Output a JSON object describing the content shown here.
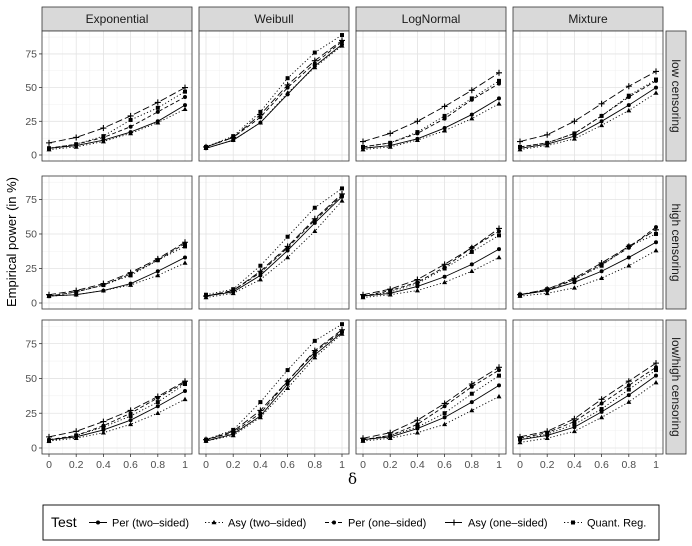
{
  "chart_data": {
    "type": "line",
    "facet_columns": [
      "Exponential",
      "Weibull",
      "LogNormal",
      "Mixture"
    ],
    "facet_rows": [
      "low censoring",
      "high censoring",
      "low/high censoring"
    ],
    "x": [
      0,
      0.2,
      0.4,
      0.6,
      0.8,
      1
    ],
    "x_tick_labels": [
      "0",
      "0.2",
      "0.4",
      "0.6",
      "0.8",
      "1"
    ],
    "y_tick_values": [
      0,
      25,
      50,
      75
    ],
    "y_tick_labels": [
      "0",
      "25",
      "50",
      "75"
    ],
    "ylim": [
      0,
      92
    ],
    "xlabel": "δ",
    "ylabel": "Empirical power (in %)",
    "legend": {
      "title": "Test",
      "position": "bottom",
      "entries": [
        "Per (two–sided)",
        "Asy (two–sided)",
        "Per (one–sided)",
        "Asy (one–sided)",
        "Quant. Reg."
      ]
    },
    "series_styles": [
      {
        "name": "Per (two–sided)",
        "marker": "circle",
        "dash": "solid"
      },
      {
        "name": "Asy (two–sided)",
        "marker": "triangle",
        "dash": "dotted"
      },
      {
        "name": "Per (one–sided)",
        "marker": "circle",
        "dash": "dashed"
      },
      {
        "name": "Asy (one–sided)",
        "marker": "plus",
        "dash": "longdash"
      },
      {
        "name": "Quant. Reg.",
        "marker": "square",
        "dash": "dotted"
      }
    ],
    "panels": [
      [
        {
          "row": "low censoring",
          "col": "Exponential",
          "series": [
            [
              5,
              7,
              11,
              17,
              25,
              37
            ],
            [
              4,
              6,
              10,
              16,
              24,
              34
            ],
            [
              5,
              8,
              13,
              21,
              32,
              43
            ],
            [
              9,
              13,
              20,
              29,
              39,
              50
            ],
            [
              5,
              8,
              14,
              26,
              35,
              47
            ]
          ]
        },
        {
          "row": "low censoring",
          "col": "Weibull",
          "series": [
            [
              5,
              11,
              24,
              45,
              66,
              82
            ],
            [
              5,
              11,
              24,
              46,
              65,
              81
            ],
            [
              6,
              13,
              28,
              50,
              68,
              84
            ],
            [
              6,
              13,
              30,
              52,
              70,
              85
            ],
            [
              6,
              14,
              32,
              57,
              76,
              89
            ]
          ]
        },
        {
          "row": "low censoring",
          "col": "LogNormal",
          "series": [
            [
              5,
              7,
              12,
              20,
              30,
              42
            ],
            [
              4,
              6,
              11,
              18,
              27,
              38
            ],
            [
              6,
              9,
              16,
              27,
              41,
              53
            ],
            [
              10,
              16,
              25,
              36,
              48,
              61
            ],
            [
              6,
              9,
              17,
              29,
              42,
              55
            ]
          ]
        },
        {
          "row": "low censoring",
          "col": "Mixture",
          "series": [
            [
              5,
              8,
              14,
              25,
              37,
              50
            ],
            [
              4,
              7,
              12,
              22,
              33,
              46
            ],
            [
              6,
              9,
              16,
              29,
              43,
              55
            ],
            [
              10,
              15,
              25,
              38,
              51,
              62
            ],
            [
              6,
              9,
              16,
              29,
              44,
              56
            ]
          ]
        }
      ],
      [
        {
          "row": "high censoring",
          "col": "Exponential",
          "series": [
            [
              5,
              6,
              9,
              14,
              23,
              33
            ],
            [
              5,
              6,
              9,
              13,
              20,
              29
            ],
            [
              5,
              8,
              13,
              21,
              31,
              43
            ],
            [
              6,
              9,
              14,
              22,
              32,
              44
            ],
            [
              5,
              8,
              13,
              20,
              31,
              41
            ]
          ]
        },
        {
          "row": "high censoring",
          "col": "Weibull",
          "series": [
            [
              5,
              8,
              20,
              38,
              58,
              77
            ],
            [
              4,
              7,
              17,
              33,
              52,
              74
            ],
            [
              5,
              9,
              22,
              40,
              60,
              78
            ],
            [
              5,
              9,
              23,
              41,
              61,
              79
            ],
            [
              6,
              10,
              27,
              48,
              69,
              83
            ]
          ]
        },
        {
          "row": "high censoring",
          "col": "LogNormal",
          "series": [
            [
              5,
              7,
              12,
              19,
              28,
              39
            ],
            [
              4,
              6,
              9,
              15,
              23,
              33
            ],
            [
              5,
              9,
              15,
              26,
              40,
              52
            ],
            [
              6,
              10,
              17,
              28,
              40,
              54
            ],
            [
              5,
              8,
              14,
              25,
              37,
              49
            ]
          ]
        },
        {
          "row": "high censoring",
          "col": "Mixture",
          "series": [
            [
              6,
              9,
              15,
              23,
              33,
              44
            ],
            [
              5,
              7,
              11,
              18,
              27,
              38
            ],
            [
              6,
              9,
              17,
              28,
              40,
              55
            ],
            [
              6,
              10,
              18,
              29,
              41,
              53
            ],
            [
              6,
              10,
              17,
              27,
              41,
              50
            ]
          ]
        }
      ],
      [
        {
          "row": "low/high censoring",
          "col": "Exponential",
          "series": [
            [
              6,
              8,
              13,
              20,
              30,
              41
            ],
            [
              5,
              7,
              11,
              17,
              25,
              35
            ],
            [
              6,
              9,
              16,
              25,
              36,
              47
            ],
            [
              8,
              12,
              19,
              27,
              37,
              48
            ],
            [
              5,
              9,
              15,
              23,
              33,
              46
            ]
          ]
        },
        {
          "row": "low/high censoring",
          "col": "Weibull",
          "series": [
            [
              5,
              10,
              23,
              46,
              67,
              83
            ],
            [
              5,
              9,
              22,
              43,
              65,
              82
            ],
            [
              6,
              11,
              25,
              48,
              69,
              84
            ],
            [
              6,
              12,
              27,
              48,
              70,
              85
            ],
            [
              6,
              13,
              33,
              56,
              77,
              89
            ]
          ]
        },
        {
          "row": "low/high censoring",
          "col": "LogNormal",
          "series": [
            [
              6,
              8,
              14,
              22,
              33,
              45
            ],
            [
              5,
              7,
              11,
              17,
              27,
              37
            ],
            [
              6,
              9,
              17,
              30,
              44,
              56
            ],
            [
              7,
              11,
              20,
              32,
              46,
              58
            ],
            [
              6,
              9,
              15,
              25,
              39,
              52
            ]
          ]
        },
        {
          "row": "low/high censoring",
          "col": "Mixture",
          "series": [
            [
              6,
              9,
              15,
              26,
              38,
              52
            ],
            [
              4,
              7,
              12,
              22,
              33,
              47
            ],
            [
              7,
              11,
              19,
              32,
              45,
              58
            ],
            [
              8,
              12,
              21,
              35,
              48,
              61
            ],
            [
              6,
              10,
              17,
              28,
              42,
              56
            ]
          ]
        }
      ]
    ]
  }
}
